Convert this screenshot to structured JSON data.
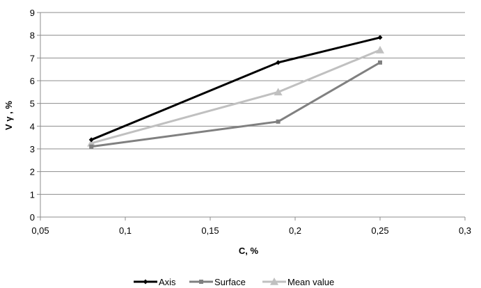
{
  "chart_data": {
    "type": "line",
    "xlabel": "C, %",
    "ylabel": "V γ , %",
    "xlim": [
      0.05,
      0.3
    ],
    "ylim": [
      0,
      9
    ],
    "xticks": [
      0.05,
      0.1,
      0.15,
      0.2,
      0.25,
      0.3
    ],
    "xtick_labels": [
      "0,05",
      "0,1",
      "0,15",
      "0,2",
      "0,25",
      "0,3"
    ],
    "yticks": [
      0,
      1,
      2,
      3,
      4,
      5,
      6,
      7,
      8,
      9
    ],
    "ytick_labels": [
      "0",
      "1",
      "2",
      "3",
      "4",
      "5",
      "6",
      "7",
      "8",
      "9"
    ],
    "grid": "horizontal",
    "legend_position": "bottom",
    "series": [
      {
        "name": "Axis",
        "x": [
          0.08,
          0.19,
          0.25
        ],
        "y": [
          3.4,
          6.8,
          7.9
        ],
        "color": "#000000",
        "marker": "diamond"
      },
      {
        "name": "Surface",
        "x": [
          0.08,
          0.19,
          0.25
        ],
        "y": [
          3.1,
          4.2,
          6.8
        ],
        "color": "#808080",
        "marker": "square"
      },
      {
        "name": "Mean value",
        "x": [
          0.08,
          0.19,
          0.25
        ],
        "y": [
          3.25,
          5.5,
          7.35
        ],
        "color": "#c0c0c0",
        "marker": "triangle"
      }
    ]
  }
}
